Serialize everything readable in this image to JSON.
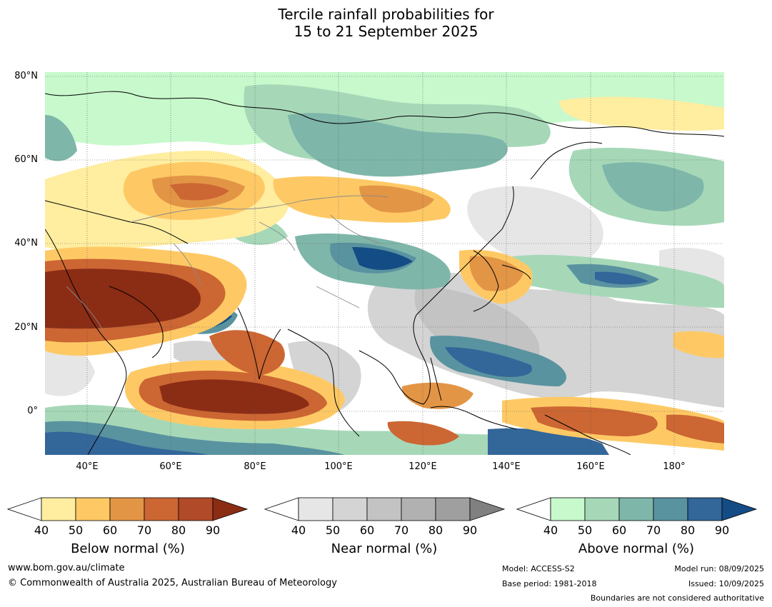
{
  "title": {
    "line1": "Tercile rainfall probabilities for",
    "line2": "15 to 21 September 2025"
  },
  "map": {
    "lat_labels": [
      "80°N",
      "60°N",
      "40°N",
      "20°N",
      "0°"
    ],
    "lon_labels": [
      "40°E",
      "60°E",
      "80°E",
      "100°E",
      "120°E",
      "140°E",
      "160°E",
      "180°"
    ]
  },
  "colorbars": [
    {
      "name": "below",
      "title": "Below normal (%)",
      "ticks": [
        "40",
        "50",
        "60",
        "70",
        "80",
        "90"
      ],
      "colors": [
        "#ffeda0",
        "#fec965",
        "#e39546",
        "#cc6633",
        "#b14a28",
        "#8b2c15"
      ]
    },
    {
      "name": "near",
      "title": "Near normal (%)",
      "ticks": [
        "40",
        "50",
        "60",
        "70",
        "80",
        "90"
      ],
      "colors": [
        "#e6e6e6",
        "#d4d4d4",
        "#c3c3c3",
        "#b1b1b1",
        "#9f9f9f",
        "#808080"
      ]
    },
    {
      "name": "above",
      "title": "Above normal (%)",
      "ticks": [
        "40",
        "50",
        "60",
        "70",
        "80",
        "90"
      ],
      "colors": [
        "#c7f9cc",
        "#a6d8b8",
        "#7fb6aa",
        "#5a93a0",
        "#336699",
        "#144c85"
      ]
    }
  ],
  "footer": {
    "url": "www.bom.gov.au/climate",
    "copyright": "© Commonwealth of Australia 2025, Australian Bureau of Meteorology",
    "model": "Model: ACCESS-S2",
    "base_period": "Base period: 1981-2018",
    "model_run": "Model run: 08/09/2025",
    "issued": "Issued: 10/09/2025",
    "disclaimer": "Boundaries are not considered authoritative"
  }
}
